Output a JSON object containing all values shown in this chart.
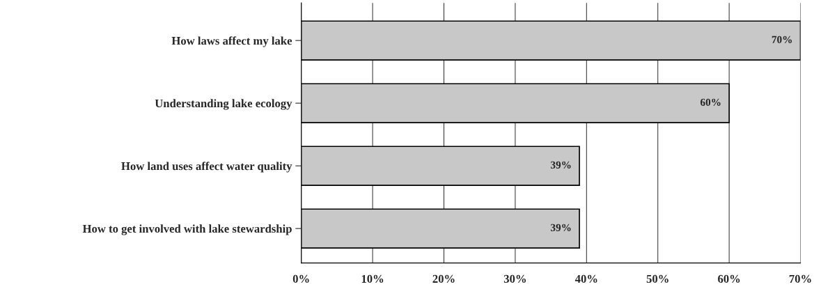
{
  "chart_data": {
    "type": "bar",
    "orientation": "horizontal",
    "categories": [
      "How laws affect my lake",
      "Understanding lake ecology",
      "How land uses affect water quality",
      "How to get involved with lake stewardship"
    ],
    "values": [
      70,
      60,
      39,
      39
    ],
    "color": "#c8c8c8",
    "value_labels": [
      "70%",
      "60%",
      "39%",
      "39%"
    ],
    "xlim": [
      0,
      70
    ],
    "xticks": [
      {
        "value": 0,
        "label": "0%"
      },
      {
        "value": 10,
        "label": "10%"
      },
      {
        "value": 20,
        "label": "20%"
      },
      {
        "value": 30,
        "label": "30%"
      },
      {
        "value": 40,
        "label": "40%"
      },
      {
        "value": 50,
        "label": "50%"
      },
      {
        "value": 60,
        "label": "60%"
      },
      {
        "value": 70,
        "label": "70%"
      }
    ],
    "grid": "x"
  }
}
